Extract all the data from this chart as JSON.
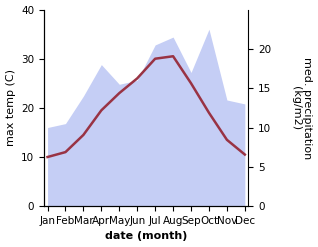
{
  "months": [
    "Jan",
    "Feb",
    "Mar",
    "Apr",
    "May",
    "Jun",
    "Jul",
    "Aug",
    "Sep",
    "Oct",
    "Nov",
    "Dec"
  ],
  "month_positions": [
    0,
    1,
    2,
    3,
    4,
    5,
    6,
    7,
    8,
    9,
    10,
    11
  ],
  "max_temp": [
    10.0,
    11.0,
    14.5,
    19.5,
    23.0,
    26.0,
    30.0,
    30.5,
    25.0,
    19.0,
    13.5,
    10.5
  ],
  "precipitation": [
    10.0,
    10.5,
    14.0,
    18.0,
    15.5,
    16.0,
    20.5,
    21.5,
    17.0,
    22.5,
    13.5,
    13.0
  ],
  "temp_color": "#993344",
  "precip_fill_color": "#c5cef5",
  "precip_line_color": "#c5cef5",
  "xlabel": "date (month)",
  "ylabel_left": "max temp (C)",
  "ylabel_right": "med. precipitation\n(kg/m2)",
  "ylim_left": [
    0,
    40
  ],
  "ylim_right": [
    0,
    25
  ],
  "yticks_left": [
    0,
    10,
    20,
    30,
    40
  ],
  "yticks_right": [
    0,
    5,
    10,
    15,
    20
  ],
  "bg_color": "#ffffff",
  "label_fontsize": 8,
  "tick_fontsize": 7.5
}
